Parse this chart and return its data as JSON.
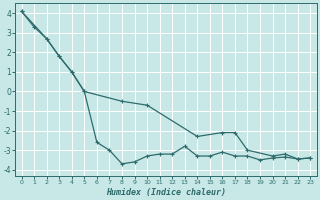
{
  "xlabel": "Humidex (Indice chaleur)",
  "background_color": "#c8e8e8",
  "grid_color": "#ffffff",
  "line_color": "#2e6b6b",
  "series1_x": [
    0,
    1,
    2,
    3,
    4,
    5,
    6,
    7,
    8,
    9,
    10,
    11,
    12,
    13,
    14,
    15,
    16,
    17,
    18,
    19,
    20,
    21,
    22,
    23
  ],
  "series1_y": [
    4.1,
    3.3,
    2.7,
    1.8,
    1.0,
    0.0,
    -2.6,
    -3.0,
    -3.7,
    -3.6,
    -3.3,
    -3.2,
    -3.2,
    -2.8,
    -3.3,
    -3.3,
    -3.1,
    -3.3,
    -3.3,
    -3.5,
    -3.4,
    -3.35,
    -3.45,
    -3.4
  ],
  "series2_x": [
    0,
    2,
    3,
    4,
    5,
    8,
    10,
    14,
    16,
    17,
    18,
    20,
    21,
    22,
    23
  ],
  "series2_y": [
    4.1,
    2.7,
    1.8,
    1.0,
    0.0,
    -0.5,
    -0.7,
    -2.3,
    -2.1,
    -2.1,
    -3.0,
    -3.3,
    -3.2,
    -3.45,
    -3.4
  ],
  "xlim": [
    -0.5,
    23.5
  ],
  "ylim": [
    -4.3,
    4.5
  ],
  "yticks": [
    -4,
    -3,
    -2,
    -1,
    0,
    1,
    2,
    3,
    4
  ],
  "xticks": [
    0,
    1,
    2,
    3,
    4,
    5,
    6,
    7,
    8,
    9,
    10,
    11,
    12,
    13,
    14,
    15,
    16,
    17,
    18,
    19,
    20,
    21,
    22,
    23
  ]
}
